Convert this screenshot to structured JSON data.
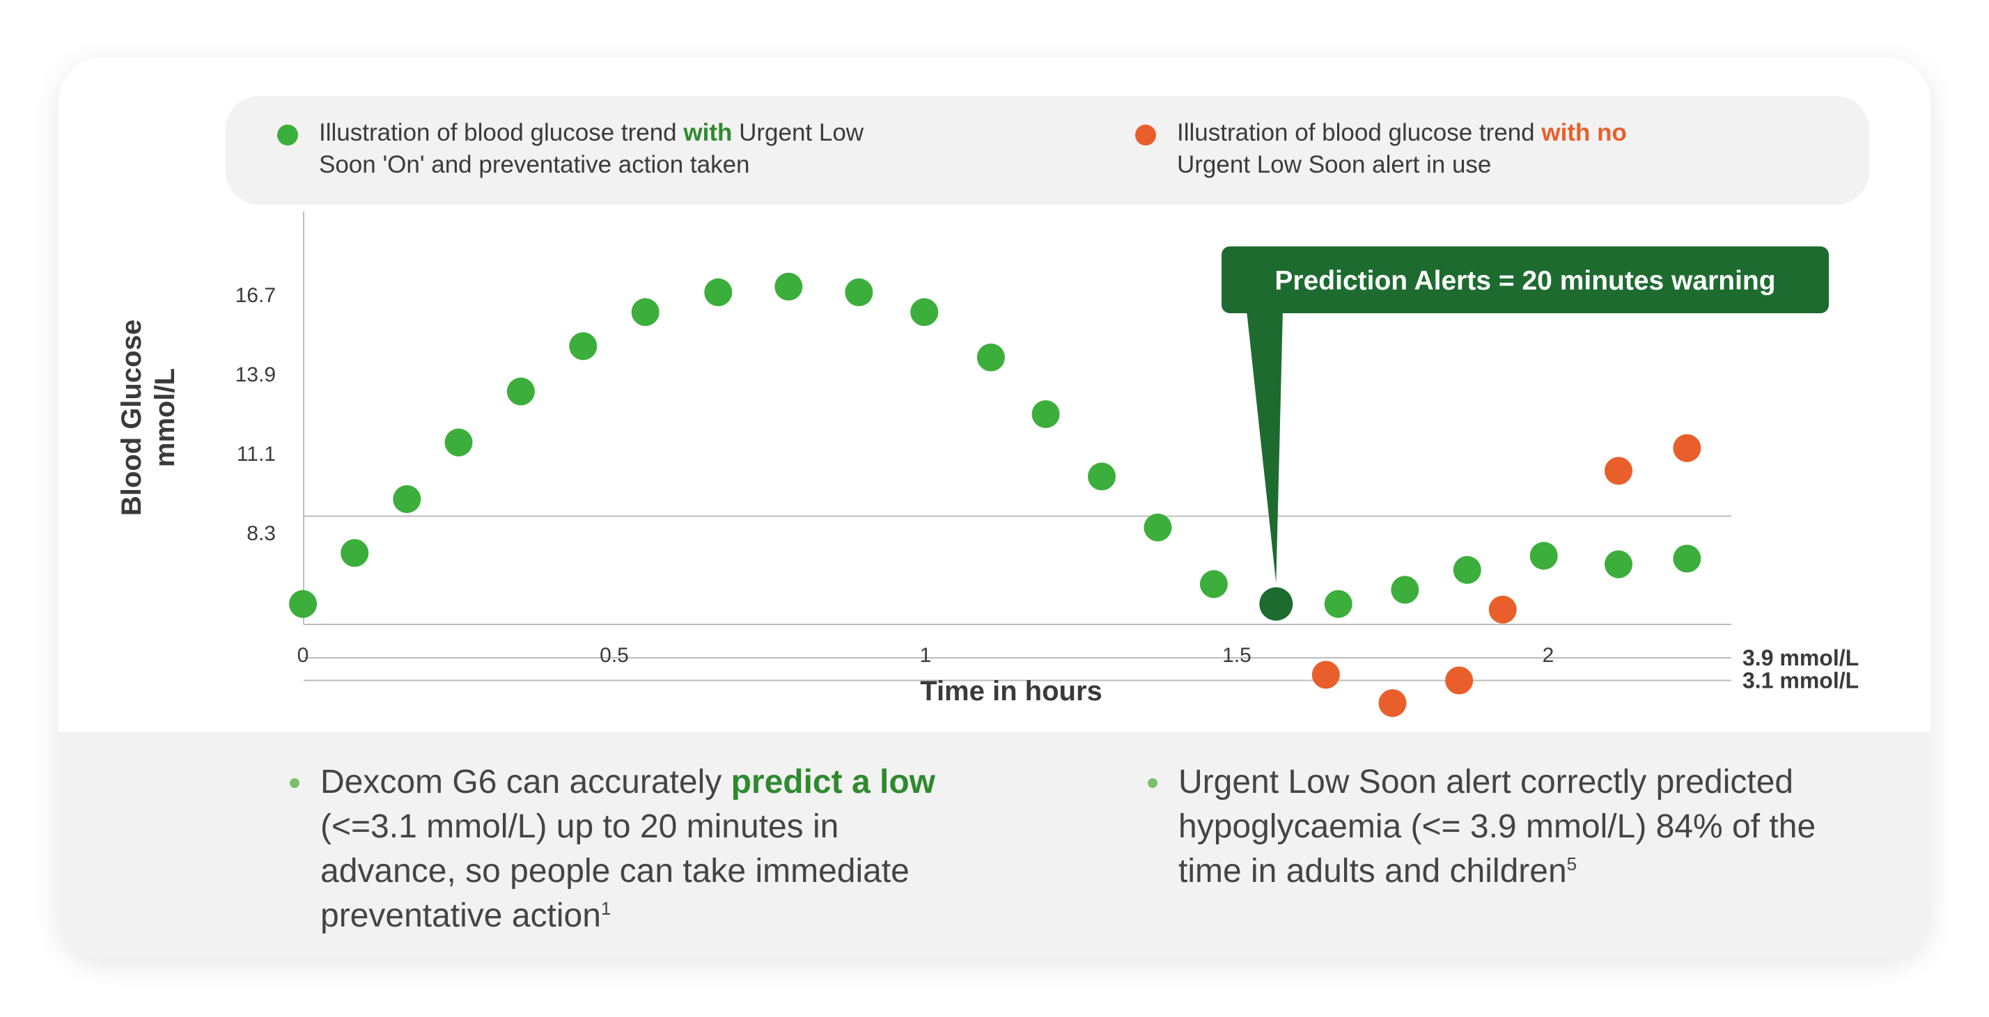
{
  "legend": {
    "green": {
      "color": "#3cae3c",
      "pre": "Illustration of blood glucose trend ",
      "highlight": "with",
      "post_line1": " Urgent Low",
      "line2": "Soon 'On' and preventative action taken"
    },
    "orange": {
      "color": "#e85f2b",
      "pre": "Illustration of blood glucose trend ",
      "highlight": "with no",
      "line2": "Urgent Low Soon alert in use"
    }
  },
  "callout": {
    "text": "Prediction Alerts = 20 minutes warning",
    "color": "#1e6b30"
  },
  "colors": {
    "green": "#3cae3c",
    "dark_green": "#1e6b30",
    "orange": "#e85f2b",
    "low_band": "#fbe3e6"
  },
  "chart_data": {
    "type": "scatter",
    "title": "",
    "xlabel": "Time in hours",
    "ylabel": "Blood Glucose",
    "ylabel_unit": "mmol/L",
    "xlim": [
      0,
      2.3
    ],
    "ylim": [
      0.4,
      16.7
    ],
    "x_ticks": [
      {
        "value": 0,
        "label": "0"
      },
      {
        "value": 0.5,
        "label": "0.5"
      },
      {
        "value": 1,
        "label": "1"
      },
      {
        "value": 1.5,
        "label": "1.5"
      },
      {
        "value": 2,
        "label": "2"
      }
    ],
    "y_ticks": [
      {
        "value": 16.7,
        "label": "16.7"
      },
      {
        "value": 13.9,
        "label": "13.9"
      },
      {
        "value": 11.1,
        "label": "11.1"
      },
      {
        "value": 8.3,
        "label": "8.3"
      }
    ],
    "reference_lines": [
      {
        "value": 8.9,
        "label": ""
      },
      {
        "value": 3.9,
        "label": "3.9  mmol/L"
      },
      {
        "value": 3.1,
        "label": "3.1  mmol/L"
      }
    ],
    "low_band": [
      1.6,
      3.9
    ],
    "series": [
      {
        "color": "#3cae3c",
        "points": [
          [
            0.0,
            5.8
          ],
          [
            0.083,
            7.6
          ],
          [
            0.167,
            9.5
          ],
          [
            0.25,
            11.5
          ],
          [
            0.35,
            13.3
          ],
          [
            0.45,
            14.9
          ],
          [
            0.55,
            16.1
          ],
          [
            0.667,
            16.8
          ],
          [
            0.78,
            17.0
          ],
          [
            0.893,
            16.8
          ],
          [
            0.998,
            16.1
          ],
          [
            1.105,
            14.5
          ],
          [
            1.193,
            12.5
          ],
          [
            1.283,
            10.3
          ],
          [
            1.373,
            8.5
          ],
          [
            1.463,
            6.5
          ],
          [
            1.563,
            5.8
          ],
          [
            1.663,
            5.8
          ],
          [
            1.77,
            6.3
          ],
          [
            1.87,
            7.0
          ],
          [
            1.993,
            7.5
          ],
          [
            2.113,
            7.2
          ],
          [
            2.223,
            7.4
          ]
        ],
        "highlight_index": 16,
        "highlight_color": "#1e6b30"
      },
      {
        "color": "#e85f2b",
        "points": [
          [
            1.643,
            3.3
          ],
          [
            1.75,
            2.3
          ],
          [
            1.857,
            3.1
          ],
          [
            1.927,
            5.6
          ],
          [
            2.113,
            10.5
          ],
          [
            2.223,
            11.3
          ]
        ]
      }
    ]
  },
  "bullets": [
    {
      "pre": "Dexcom G6 can accurately ",
      "highlight": "predict a low",
      "line2": "(<=3.1 mmol/L) up to 20 minutes in",
      "line3": "advance, so people can take immediate",
      "line4": "preventative action",
      "sup": "1"
    },
    {
      "line1": "Urgent Low Soon alert correctly predicted",
      "line2": "hypoglycaemia (<= 3.9 mmol/L) 84% of the",
      "line3": "time in adults and children",
      "sup": "5"
    }
  ]
}
